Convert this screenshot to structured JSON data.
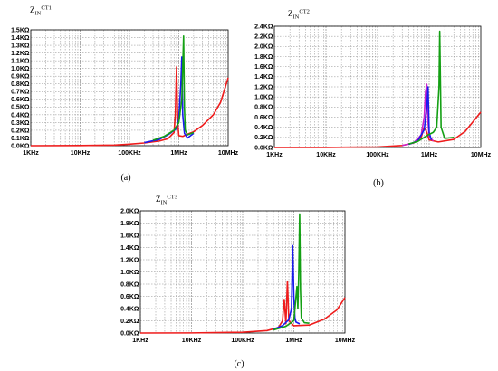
{
  "colors": {
    "red": "#ee1c1c",
    "green": "#14a014",
    "blue": "#1a1aee",
    "magenta": "#cc22cc",
    "grid": "#7d7d7d"
  },
  "chart_data": [
    {
      "type": "line",
      "title_main": "Z",
      "title_sub": "IN",
      "title_sup": "CT1",
      "caption": "(a)",
      "x_scale": "log",
      "xlim": [
        1000,
        10000000
      ],
      "ylim": [
        0,
        1500
      ],
      "grid": true,
      "x_ticks": [
        "1KHz",
        "10KHz",
        "100KHz",
        "1MHz",
        "10MHz"
      ],
      "y_ticks": [
        "0.0KΩ",
        "0.1KΩ",
        "0.2KΩ",
        "0.3KΩ",
        "0.4KΩ",
        "0.5KΩ",
        "0.6KΩ",
        "0.7KΩ",
        "0.8KΩ",
        "0.9KΩ",
        "1.0KΩ",
        "1.1KΩ",
        "1.2KΩ",
        "1.3KΩ",
        "1.4KΩ",
        "1.5KΩ"
      ],
      "series": [
        {
          "color": "red",
          "x": [
            1000,
            10000,
            50000,
            100000,
            200000,
            400000,
            600000,
            800000,
            850000,
            900000,
            950000,
            1000000,
            1200000,
            1500000,
            2000000,
            3000000,
            5000000,
            7000000,
            10000000
          ],
          "y": [
            0,
            2,
            8,
            20,
            35,
            60,
            90,
            170,
            400,
            1020,
            300,
            130,
            120,
            150,
            180,
            260,
            400,
            560,
            880
          ]
        },
        {
          "color": "blue",
          "x": [
            200000,
            400000,
            600000,
            900000,
            1000000,
            1100000,
            1150000,
            1200000,
            1300000,
            1500000,
            2000000
          ],
          "y": [
            40,
            80,
            140,
            220,
            350,
            800,
            1150,
            400,
            160,
            100,
            160
          ]
        },
        {
          "color": "green",
          "x": [
            300000,
            500000,
            800000,
            1000000,
            1150000,
            1250000,
            1300000,
            1350000,
            1500000,
            2000000
          ],
          "y": [
            70,
            120,
            200,
            300,
            600,
            1420,
            500,
            200,
            140,
            170
          ]
        }
      ]
    },
    {
      "type": "line",
      "title_main": "Z",
      "title_sub": "IN",
      "title_sup": "CT2",
      "caption": "(b)",
      "x_scale": "log",
      "xlim": [
        1000,
        10000000
      ],
      "ylim": [
        0,
        2400
      ],
      "grid": true,
      "x_ticks": [
        "1KHz",
        "10KHz",
        "100KHz",
        "1MHz",
        "10MHz"
      ],
      "y_ticks": [
        "0.0KΩ",
        "0.2KΩ",
        "0.4KΩ",
        "0.6KΩ",
        "0.8KΩ",
        "1.0KΩ",
        "1.2KΩ",
        "1.4KΩ",
        "1.6KΩ",
        "1.8KΩ",
        "2.0KΩ",
        "2.2KΩ",
        "2.4KΩ"
      ],
      "series": [
        {
          "color": "red",
          "x": [
            1000,
            10000,
            100000,
            300000,
            500000,
            700000,
            800000,
            900000,
            1000000,
            1500000,
            3000000,
            5000000,
            10000000
          ],
          "y": [
            0,
            2,
            10,
            40,
            90,
            200,
            400,
            300,
            150,
            110,
            160,
            320,
            700
          ]
        },
        {
          "color": "magenta",
          "x": [
            300000,
            500000,
            700000,
            800000,
            850000,
            900000,
            950000,
            1000000,
            1200000
          ],
          "y": [
            40,
            90,
            250,
            600,
            1100,
            1250,
            500,
            220,
            130
          ]
        },
        {
          "color": "blue",
          "x": [
            400000,
            600000,
            800000,
            900000,
            950000,
            1000000,
            1100000
          ],
          "y": [
            60,
            130,
            350,
            800,
            1200,
            300,
            150
          ]
        },
        {
          "color": "green",
          "x": [
            400000,
            600000,
            800000,
            1000000,
            1200000,
            1400000,
            1550000,
            1600000,
            1700000,
            2000000,
            3000000
          ],
          "y": [
            70,
            120,
            200,
            260,
            300,
            400,
            1200,
            2300,
            400,
            180,
            200
          ]
        }
      ]
    },
    {
      "type": "line",
      "title_main": "Z",
      "title_sub": "IN",
      "title_sup": "CT3",
      "caption": "(c)",
      "x_scale": "log",
      "xlim": [
        1000,
        10000000
      ],
      "ylim": [
        0,
        2000
      ],
      "grid": true,
      "x_ticks": [
        "1KHz",
        "10KHz",
        "100KHz",
        "1MHz",
        "10MHz"
      ],
      "y_ticks": [
        "0.0KΩ",
        "0.2KΩ",
        "0.4KΩ",
        "0.6KΩ",
        "0.8KΩ",
        "1.0KΩ",
        "1.2KΩ",
        "1.4KΩ",
        "1.6KΩ",
        "1.8KΩ",
        "2.0KΩ"
      ],
      "series": [
        {
          "color": "red",
          "x": [
            1000,
            10000,
            100000,
            300000,
            500000,
            600000,
            650000,
            700000,
            750000,
            800000,
            1000000,
            2000000,
            4000000,
            7000000,
            10000000
          ],
          "y": [
            0,
            2,
            12,
            40,
            90,
            200,
            550,
            150,
            850,
            200,
            120,
            130,
            230,
            380,
            580
          ]
        },
        {
          "color": "blue",
          "x": [
            400000,
            600000,
            800000,
            900000,
            950000,
            1000000,
            1050000,
            1100000,
            1300000
          ],
          "y": [
            60,
            120,
            220,
            400,
            1430,
            600,
            250,
            180,
            150
          ]
        },
        {
          "color": "green",
          "x": [
            400000,
            700000,
            1000000,
            1150000,
            1200000,
            1250000,
            1300000,
            1350000,
            1400000,
            1600000,
            2000000
          ],
          "y": [
            50,
            110,
            200,
            760,
            400,
            1000,
            1950,
            700,
            250,
            170,
            160
          ]
        }
      ]
    }
  ]
}
